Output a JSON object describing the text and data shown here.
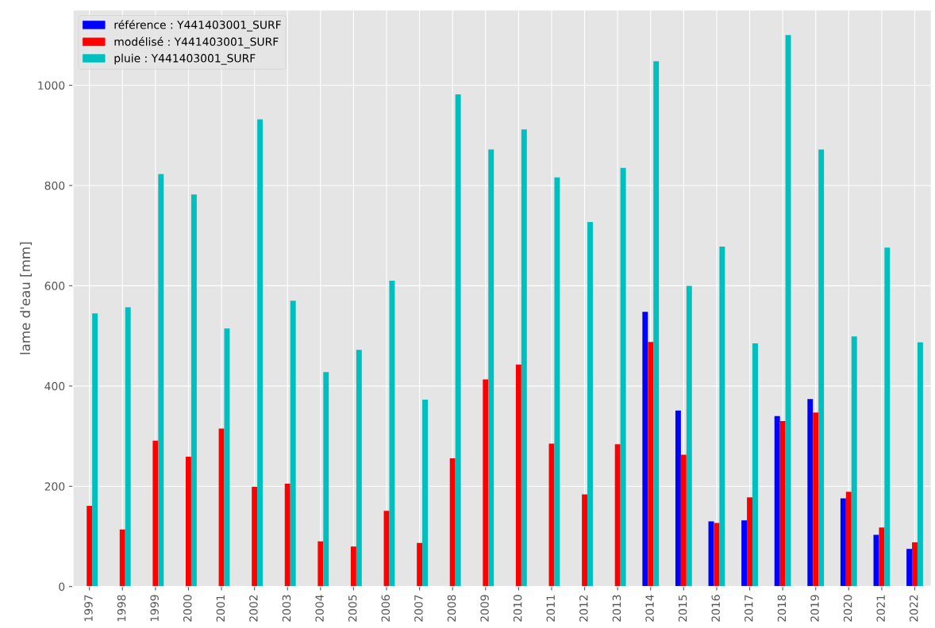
{
  "chart_data": {
    "type": "bar",
    "ylabel": "lame d'eau [mm]",
    "categories": [
      "1997",
      "1998",
      "1999",
      "2000",
      "2001",
      "2002",
      "2003",
      "2004",
      "2005",
      "2006",
      "2007",
      "2008",
      "2009",
      "2010",
      "2011",
      "2012",
      "2013",
      "2014",
      "2015",
      "2016",
      "2017",
      "2018",
      "2019",
      "2020",
      "2021",
      "2022"
    ],
    "series": [
      {
        "name": "référence : Y441403001_SURF",
        "color": "#0000ff",
        "values": [
          null,
          null,
          null,
          null,
          null,
          null,
          null,
          null,
          null,
          null,
          null,
          null,
          null,
          null,
          null,
          null,
          null,
          548,
          351,
          130,
          132,
          340,
          374,
          176,
          103,
          75
        ]
      },
      {
        "name": "modélisé : Y441403001_SURF",
        "color": "#ff0000",
        "values": [
          161,
          114,
          291,
          259,
          315,
          199,
          205,
          90,
          80,
          151,
          87,
          256,
          413,
          443,
          285,
          184,
          284,
          488,
          263,
          127,
          178,
          330,
          347,
          189,
          118,
          88
        ]
      },
      {
        "name": "pluie : Y441403001_SURF",
        "color": "#00bfbf",
        "values": [
          545,
          557,
          823,
          782,
          515,
          932,
          570,
          428,
          472,
          610,
          373,
          982,
          872,
          912,
          816,
          727,
          835,
          1048,
          600,
          678,
          485,
          1100,
          872,
          499,
          676,
          487
        ]
      }
    ],
    "ylim": [
      0,
      1150
    ],
    "yticks": [
      0,
      200,
      400,
      600,
      800,
      1000
    ],
    "grid": true,
    "legend": "top left"
  }
}
